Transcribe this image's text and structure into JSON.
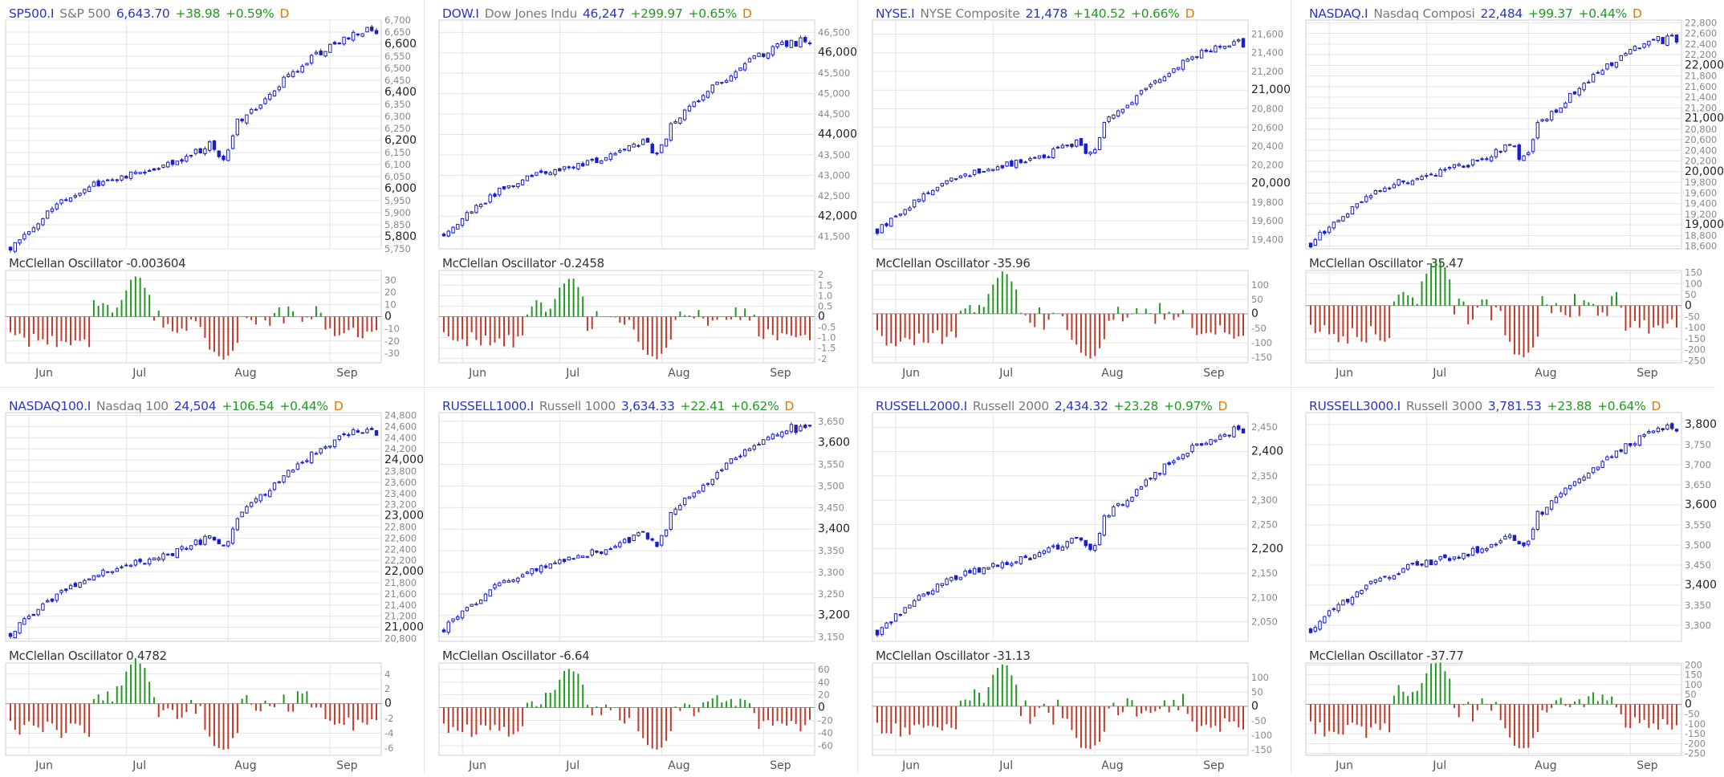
{
  "colors": {
    "up": "#1f9a1f",
    "down": "#c0392b",
    "candle": "#1a1fc8",
    "symbol": "#2a35c8",
    "name": "#7a7a7a",
    "grid": "#e3e3e3",
    "period": "#e07b00"
  },
  "panels": [
    {
      "symbol": "SP500.I",
      "name": "S&P 500",
      "last": "6,643.70",
      "change": "+38.98",
      "pct": "+0.59%",
      "period": "D",
      "osc_label": "McClellan Oscillator -0.003604"
    },
    {
      "symbol": "DOW.I",
      "name": "Dow Jones Indu",
      "last": "46,247",
      "change": "+299.97",
      "pct": "+0.65%",
      "period": "D",
      "osc_label": "McClellan Oscillator -0.2458"
    },
    {
      "symbol": "NYSE.I",
      "name": "NYSE Composite",
      "last": "21,478",
      "change": "+140.52",
      "pct": "+0.66%",
      "period": "D",
      "osc_label": "McClellan Oscillator -35.96"
    },
    {
      "symbol": "NASDAQ.I",
      "name": "Nasdaq Composi",
      "last": "22,484",
      "change": "+99.37",
      "pct": "+0.44%",
      "period": "D",
      "osc_label": "McClellan Oscillator -35.47"
    },
    {
      "symbol": "NASDAQ100.I",
      "name": "Nasdaq 100",
      "last": "24,504",
      "change": "+106.54",
      "pct": "+0.44%",
      "period": "D",
      "osc_label": "McClellan Oscillator 0.4782"
    },
    {
      "symbol": "RUSSELL1000.I",
      "name": "Russell 1000",
      "last": "3,634.33",
      "change": "+22.41",
      "pct": "+0.62%",
      "period": "D",
      "osc_label": "McClellan Oscillator -6.64"
    },
    {
      "symbol": "RUSSELL2000.I",
      "name": "Russell 2000",
      "last": "2,434.32",
      "change": "+23.28",
      "pct": "+0.97%",
      "period": "D",
      "osc_label": "McClellan Oscillator -31.13"
    },
    {
      "symbol": "RUSSELL3000.I",
      "name": "Russell 3000",
      "last": "3,781.53",
      "change": "+23.88",
      "pct": "+0.64%",
      "period": "D",
      "osc_label": "McClellan Oscillator -37.77"
    }
  ],
  "chart_data": [
    {
      "type": "candlestick",
      "series": "SP500.I",
      "ylim": [
        5750,
        6700
      ],
      "start": 5760,
      "end": 6643.7,
      "price_ticks": [
        {
          "v": "6,700",
          "major": false
        },
        {
          "v": "6,650",
          "major": false
        },
        {
          "v": "6,600",
          "major": true
        },
        {
          "v": "6,550",
          "major": false
        },
        {
          "v": "6,500",
          "major": false
        },
        {
          "v": "6,450",
          "major": false
        },
        {
          "v": "6,400",
          "major": true
        },
        {
          "v": "6,350",
          "major": false
        },
        {
          "v": "6,300",
          "major": false
        },
        {
          "v": "6,250",
          "major": false
        },
        {
          "v": "6,200",
          "major": true
        },
        {
          "v": "6,150",
          "major": false
        },
        {
          "v": "6,100",
          "major": false
        },
        {
          "v": "6,050",
          "major": false
        },
        {
          "v": "6,000",
          "major": true
        },
        {
          "v": "5,950",
          "major": false
        },
        {
          "v": "5,900",
          "major": false
        },
        {
          "v": "5,850",
          "major": false
        },
        {
          "v": "5,800",
          "major": true
        },
        {
          "v": "5,750",
          "major": false
        }
      ],
      "osc_ylim": [
        -38,
        38
      ],
      "osc_ticks": [
        "30",
        "20",
        "10",
        "0",
        "-10",
        "-20",
        "-30"
      ],
      "x_labels": [
        "Jun",
        "Jul",
        "Aug",
        "Sep"
      ]
    },
    {
      "type": "candlestick",
      "series": "DOW.I",
      "ylim": [
        41200,
        46800
      ],
      "start": 41600,
      "end": 46247,
      "price_ticks": [
        {
          "v": "46,500",
          "major": false
        },
        {
          "v": "46,000",
          "major": true
        },
        {
          "v": "45,500",
          "major": false
        },
        {
          "v": "45,000",
          "major": false
        },
        {
          "v": "44,500",
          "major": false
        },
        {
          "v": "44,000",
          "major": true
        },
        {
          "v": "43,500",
          "major": false
        },
        {
          "v": "43,000",
          "major": false
        },
        {
          "v": "42,500",
          "major": false
        },
        {
          "v": "42,000",
          "major": true
        },
        {
          "v": "41,500",
          "major": false
        }
      ],
      "osc_ylim": [
        -2.2,
        2.2
      ],
      "osc_ticks": [
        "2",
        "1.5",
        "1.0",
        "0.5",
        "0",
        "-0.5",
        "-1.0",
        "-1.5",
        "-2"
      ],
      "x_labels": [
        "Jun",
        "Jul",
        "Aug",
        "Sep"
      ]
    },
    {
      "type": "candlestick",
      "series": "NYSE.I",
      "ylim": [
        19300,
        21750
      ],
      "start": 19500,
      "end": 21478,
      "price_ticks": [
        {
          "v": "21,600",
          "major": false
        },
        {
          "v": "21,400",
          "major": false
        },
        {
          "v": "21,200",
          "major": false
        },
        {
          "v": "21,000",
          "major": true
        },
        {
          "v": "20,800",
          "major": false
        },
        {
          "v": "20,600",
          "major": false
        },
        {
          "v": "20,400",
          "major": false
        },
        {
          "v": "20,200",
          "major": false
        },
        {
          "v": "20,000",
          "major": true
        },
        {
          "v": "19,800",
          "major": false
        },
        {
          "v": "19,600",
          "major": false
        },
        {
          "v": "19,400",
          "major": false
        }
      ],
      "osc_ylim": [
        -170,
        150
      ],
      "osc_ticks": [
        "100",
        "50",
        "0",
        "-50",
        "-100",
        "-150"
      ],
      "x_labels": [
        "Jun",
        "Jul",
        "Aug",
        "Sep"
      ]
    },
    {
      "type": "candlestick",
      "series": "NASDAQ.I",
      "ylim": [
        18550,
        22850
      ],
      "start": 18650,
      "end": 22484,
      "price_ticks": [
        {
          "v": "22,800",
          "major": false
        },
        {
          "v": "22,600",
          "major": false
        },
        {
          "v": "22,400",
          "major": false
        },
        {
          "v": "22,200",
          "major": false
        },
        {
          "v": "22,000",
          "major": true
        },
        {
          "v": "21,800",
          "major": false
        },
        {
          "v": "21,600",
          "major": false
        },
        {
          "v": "21,400",
          "major": false
        },
        {
          "v": "21,200",
          "major": false
        },
        {
          "v": "21,000",
          "major": true
        },
        {
          "v": "20,800",
          "major": false
        },
        {
          "v": "20,600",
          "major": false
        },
        {
          "v": "20,400",
          "major": false
        },
        {
          "v": "20,200",
          "major": false
        },
        {
          "v": "20,000",
          "major": true
        },
        {
          "v": "19,800",
          "major": false
        },
        {
          "v": "19,600",
          "major": false
        },
        {
          "v": "19,400",
          "major": false
        },
        {
          "v": "19,200",
          "major": false
        },
        {
          "v": "19,000",
          "major": true
        },
        {
          "v": "18,800",
          "major": false
        },
        {
          "v": "18,600",
          "major": false
        }
      ],
      "osc_ylim": [
        -260,
        160
      ],
      "osc_ticks": [
        "150",
        "100",
        "50",
        "0",
        "-50",
        "-100",
        "-150",
        "-200",
        "-250"
      ],
      "x_labels": [
        "Jun",
        "Jul",
        "Aug",
        "Sep"
      ]
    },
    {
      "type": "candlestick",
      "series": "NASDAQ100.I",
      "ylim": [
        20750,
        24850
      ],
      "start": 20900,
      "end": 24504,
      "price_ticks": [
        {
          "v": "24,800",
          "major": false
        },
        {
          "v": "24,600",
          "major": false
        },
        {
          "v": "24,400",
          "major": false
        },
        {
          "v": "24,200",
          "major": false
        },
        {
          "v": "24,000",
          "major": true
        },
        {
          "v": "23,800",
          "major": false
        },
        {
          "v": "23,600",
          "major": false
        },
        {
          "v": "23,400",
          "major": false
        },
        {
          "v": "23,200",
          "major": false
        },
        {
          "v": "23,000",
          "major": true
        },
        {
          "v": "22,800",
          "major": false
        },
        {
          "v": "22,600",
          "major": false
        },
        {
          "v": "22,400",
          "major": false
        },
        {
          "v": "22,200",
          "major": false
        },
        {
          "v": "22,000",
          "major": true
        },
        {
          "v": "21,800",
          "major": false
        },
        {
          "v": "21,600",
          "major": false
        },
        {
          "v": "21,400",
          "major": false
        },
        {
          "v": "21,200",
          "major": false
        },
        {
          "v": "21,000",
          "major": true
        },
        {
          "v": "20,800",
          "major": false
        }
      ],
      "osc_ylim": [
        -7,
        5.5
      ],
      "osc_ticks": [
        "4",
        "2",
        "0",
        "-2",
        "-4",
        "-6"
      ],
      "x_labels": [
        "Jun",
        "Jul",
        "Aug",
        "Sep"
      ]
    },
    {
      "type": "candlestick",
      "series": "RUSSELL1000.I",
      "ylim": [
        3140,
        3670
      ],
      "start": 3170,
      "end": 3634.33,
      "price_ticks": [
        {
          "v": "3,650",
          "major": false
        },
        {
          "v": "3,600",
          "major": true
        },
        {
          "v": "3,550",
          "major": false
        },
        {
          "v": "3,500",
          "major": false
        },
        {
          "v": "3,450",
          "major": false
        },
        {
          "v": "3,400",
          "major": true
        },
        {
          "v": "3,350",
          "major": false
        },
        {
          "v": "3,300",
          "major": false
        },
        {
          "v": "3,250",
          "major": false
        },
        {
          "v": "3,200",
          "major": true
        },
        {
          "v": "3,150",
          "major": false
        }
      ],
      "osc_ylim": [
        -75,
        70
      ],
      "osc_ticks": [
        "60",
        "40",
        "20",
        "0",
        "-20",
        "-40",
        "-60"
      ],
      "x_labels": [
        "Jun",
        "Jul",
        "Aug",
        "Sep"
      ]
    },
    {
      "type": "candlestick",
      "series": "RUSSELL2000.I",
      "ylim": [
        2010,
        2480
      ],
      "start": 2030,
      "end": 2434.32,
      "price_ticks": [
        {
          "v": "2,450",
          "major": false
        },
        {
          "v": "2,400",
          "major": true
        },
        {
          "v": "2,350",
          "major": false
        },
        {
          "v": "2,300",
          "major": false
        },
        {
          "v": "2,250",
          "major": false
        },
        {
          "v": "2,200",
          "major": true
        },
        {
          "v": "2,150",
          "major": false
        },
        {
          "v": "2,100",
          "major": false
        },
        {
          "v": "2,050",
          "major": false
        }
      ],
      "osc_ylim": [
        -170,
        150
      ],
      "osc_ticks": [
        "100",
        "50",
        "0",
        "-50",
        "-100",
        "-150"
      ],
      "x_labels": [
        "Jun",
        "Jul",
        "Aug",
        "Sep"
      ]
    },
    {
      "type": "candlestick",
      "series": "RUSSELL3000.I",
      "ylim": [
        3260,
        3830
      ],
      "start": 3290,
      "end": 3781.53,
      "price_ticks": [
        {
          "v": "3,800",
          "major": true
        },
        {
          "v": "3,750",
          "major": false
        },
        {
          "v": "3,700",
          "major": false
        },
        {
          "v": "3,650",
          "major": false
        },
        {
          "v": "3,600",
          "major": true
        },
        {
          "v": "3,550",
          "major": false
        },
        {
          "v": "3,500",
          "major": false
        },
        {
          "v": "3,450",
          "major": false
        },
        {
          "v": "3,400",
          "major": true
        },
        {
          "v": "3,350",
          "major": false
        },
        {
          "v": "3,300",
          "major": false
        }
      ],
      "osc_ylim": [
        -260,
        210
      ],
      "osc_ticks": [
        "200",
        "150",
        "100",
        "50",
        "0",
        "-50",
        "-100",
        "-150",
        "-200",
        "-250"
      ],
      "x_labels": [
        "Jun",
        "Jul",
        "Aug",
        "Sep"
      ]
    }
  ]
}
